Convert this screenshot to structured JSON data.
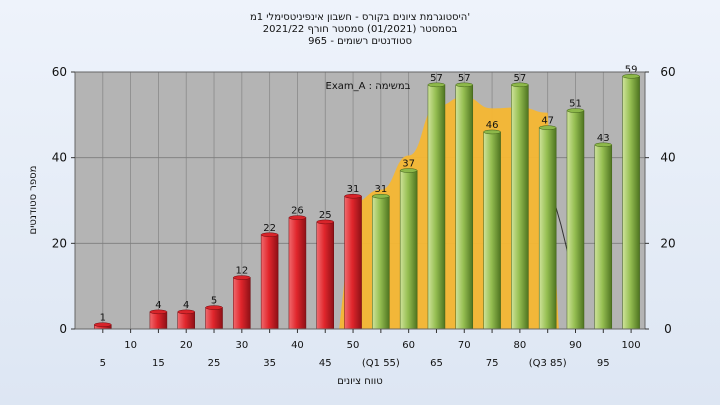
{
  "chart_data": {
    "type": "bar",
    "title_lines": [
      "היסטוגרמת ציונים בקורס - חשבון אינפיניטסימלי 1מ'",
      "בסמסטר  (01/2021)  סמסטר חורף  2021/22",
      "סטודנטים רשומים - 965"
    ],
    "ylabel": "מספר סטודנטים",
    "xlabel": "טווח ציונים",
    "legend_text": "Exam_A : במשימה",
    "ylim": [
      0,
      60
    ],
    "yticks": [
      0,
      20,
      40,
      60
    ],
    "categories": [
      "5",
      "10",
      "15",
      "20",
      "25",
      "30",
      "35",
      "40",
      "45",
      "50",
      "55",
      "60",
      "65",
      "70",
      "75",
      "80",
      "85",
      "90",
      "95",
      "100"
    ],
    "x_tick_labels": [
      "5",
      "10",
      "15",
      "20",
      "25",
      "30",
      "35",
      "40",
      "45",
      "50",
      "(Q1 55)",
      "60",
      "65",
      "70",
      "75",
      "80",
      "(Q3 85)",
      "90",
      "95",
      "100"
    ],
    "values": [
      1,
      0,
      4,
      4,
      5,
      12,
      22,
      26,
      25,
      31,
      31,
      37,
      57,
      57,
      46,
      57,
      47,
      51,
      43,
      59
    ],
    "value_labels": [
      "1",
      "",
      "4",
      "4",
      "5",
      "12",
      "22",
      "26",
      "25",
      "31",
      "31",
      "37",
      "57",
      "57",
      "46",
      "57",
      "47",
      "51",
      "43",
      "59"
    ],
    "fail_color": "#d8242a",
    "pass_color": "#8db84a",
    "curve_color": "#f5b733",
    "plot_background": "#b4b4b4",
    "grid": true
  }
}
